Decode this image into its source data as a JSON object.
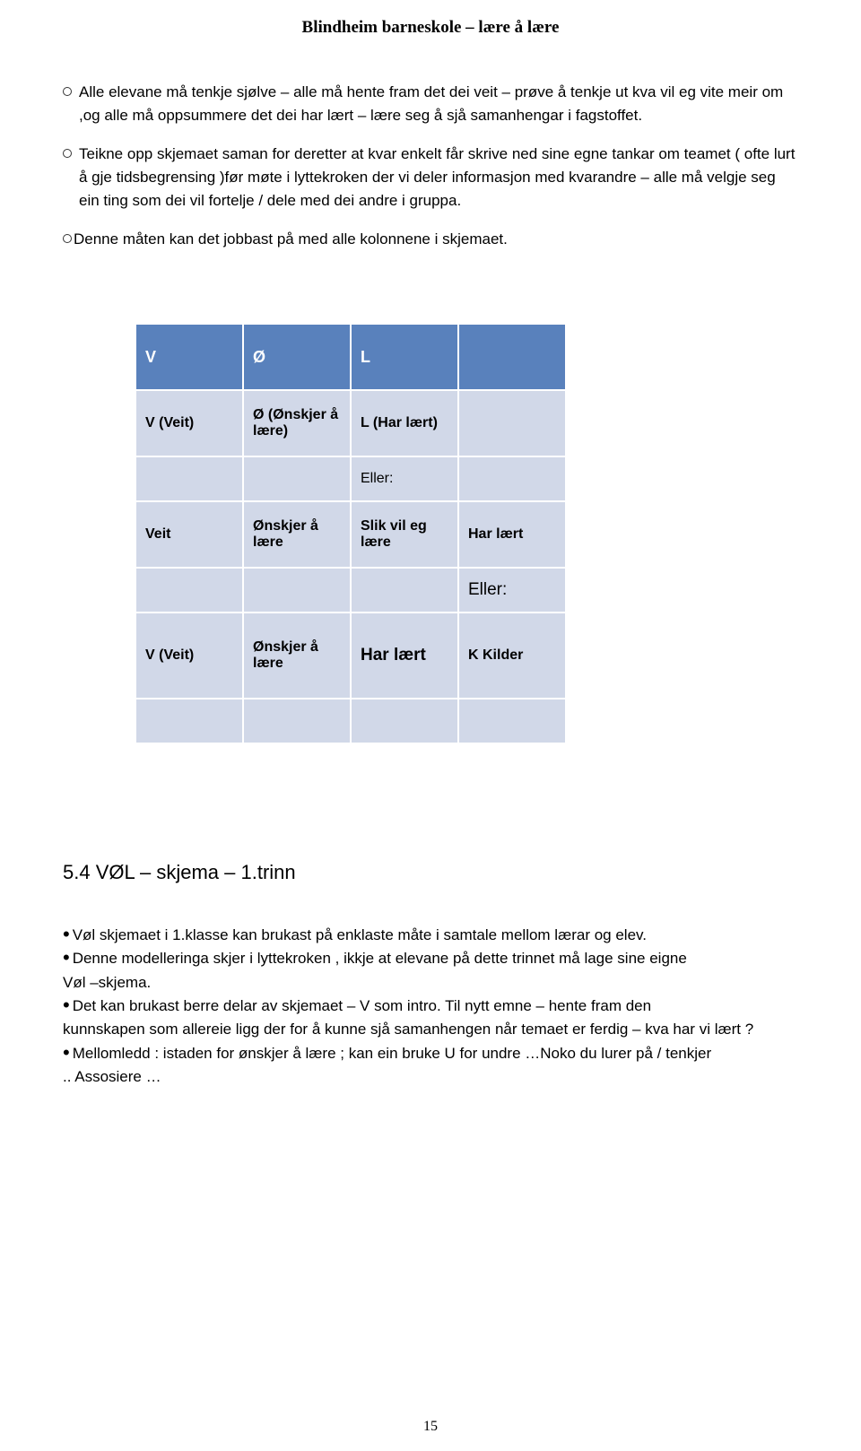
{
  "header": {
    "title": "Blindheim barneskole – lære å lære"
  },
  "bullets": {
    "items": [
      "Alle elevane må tenkje sjølve – alle må hente fram det dei veit – prøve å tenkje ut kva vil eg vite meir om ,og alle må oppsummere det dei har lært – lære seg å sjå samanhengar i fagstoffet.",
      "Teikne opp skjemaet saman for deretter at kvar enkelt får skrive ned sine egne tankar om teamet   ( ofte lurt å gje tidsbegrensing )før møte i lyttekroken der vi deler informasjon med kvarandre – alle må velgje seg ein ting som dei vil fortelje / dele med dei andre i gruppa.",
      "Denne måten kan det jobbast på med alle kolonnene i skjemaet."
    ]
  },
  "vol_table": {
    "colors": {
      "header_bg": "#5981bc",
      "header_fg": "#ffffff",
      "cell_bg": "#d1d8e8",
      "border": "#ffffff"
    },
    "type": "table",
    "header": [
      "V",
      "Ø",
      "L",
      ""
    ],
    "rows": [
      {
        "cells": [
          "V (Veit)",
          "Ø (Ønskjer å lære)",
          "L (Har lært)",
          ""
        ],
        "bold": [
          true,
          true,
          true,
          false
        ]
      },
      {
        "cells": [
          "",
          "",
          "Eller:",
          ""
        ]
      },
      {
        "cells": [
          "Veit",
          "Ønskjer å lære",
          "Slik vil eg lære",
          "Har lært"
        ],
        "bold": [
          true,
          true,
          true,
          true
        ]
      },
      {
        "cells": [
          "",
          "",
          "",
          "Eller:"
        ],
        "big": [
          false,
          false,
          false,
          true
        ]
      },
      {
        "cells": [
          "V (Veit)",
          "Ønskjer å lære",
          "Har lært",
          "K Kilder"
        ],
        "bold": [
          true,
          true,
          true,
          true
        ],
        "big": [
          false,
          false,
          true,
          false
        ]
      },
      {
        "cells": [
          "",
          "",
          "",
          ""
        ]
      }
    ]
  },
  "section": {
    "heading": "5.4 VØL – skjema – 1.trinn"
  },
  "notes": {
    "items": [
      "Vøl skjemaet i 1.klasse kan brukast på enklaste måte i samtale mellom lærar og elev.",
      "Denne  modelleringa skjer i lyttekroken , ikkje at elevane på dette trinnet må lage sine eigne"
    ],
    "cont1": " Vøl –skjema.",
    "items2": [
      "Det kan brukast  berre delar av skjemaet – V som intro. Til nytt emne – hente fram den"
    ],
    "cont2": "kunnskapen som allereie ligg der for å kunne sjå samanhengen når temaet er ferdig – kva har vi lært ?",
    "items3": [
      "Mellomledd : istaden for ønskjer å lære ; kan ein bruke U for undre …Noko du lurer på / tenkjer"
    ],
    "cont3": ".. Assosiere …"
  },
  "page_number": "15"
}
